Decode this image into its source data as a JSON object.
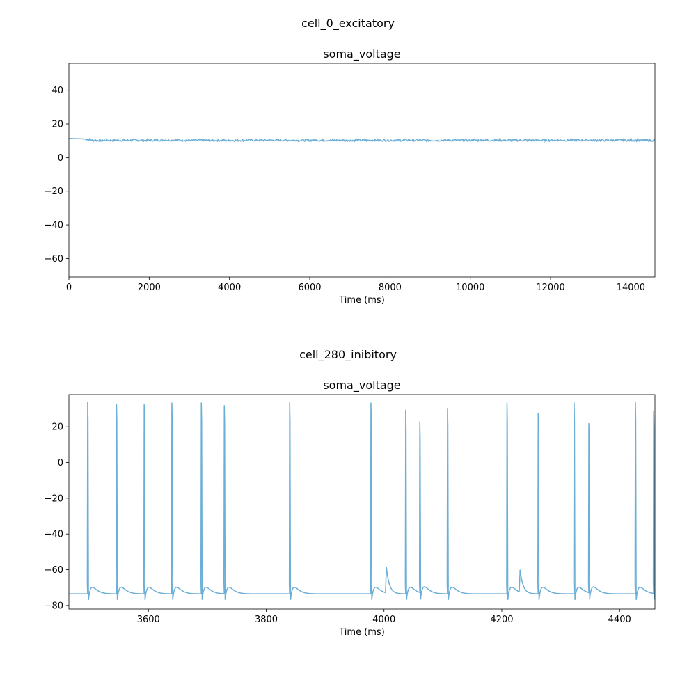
{
  "chart_data": [
    {
      "type": "line",
      "suptitle": "cell_0_excitatory",
      "title": "soma_voltage",
      "xlabel": "Time (ms)",
      "ylabel": "",
      "xlim": [
        0,
        14600
      ],
      "ylim": [
        -71,
        56
      ],
      "xticks": [
        0,
        2000,
        4000,
        6000,
        8000,
        10000,
        12000,
        14000
      ],
      "yticks": [
        -60,
        -40,
        -20,
        0,
        20,
        40
      ],
      "grid": false,
      "color": "#6baed6",
      "series": [
        {
          "x": [
            0,
            300,
            500,
            600,
            800,
            1000,
            1500,
            2000,
            2500,
            3000,
            3500,
            4000,
            4500,
            5000,
            5500,
            6000,
            6500,
            7000,
            7500,
            8000,
            8500,
            9000,
            9500,
            10000,
            10500,
            11000,
            11500,
            12000,
            12500,
            13000,
            13500,
            14000,
            14600
          ],
          "values": [
            11.4,
            11.2,
            10.8,
            10.3,
            10.2,
            10.3,
            10.3,
            10.3,
            10.4,
            10.3,
            10.3,
            10.2,
            10.3,
            10.3,
            10.3,
            10.3,
            10.3,
            10.3,
            10.3,
            10.3,
            10.3,
            10.3,
            10.3,
            10.3,
            10.3,
            10.3,
            10.3,
            10.3,
            10.3,
            10.3,
            10.3,
            10.3,
            10.2
          ],
          "noise_amplitude": 0.6
        }
      ]
    },
    {
      "type": "line",
      "suptitle": "cell_280_inibitory",
      "title": "soma_voltage",
      "xlabel": "Time (ms)",
      "ylabel": "",
      "xlim": [
        3465,
        4460
      ],
      "ylim": [
        -82,
        38
      ],
      "xticks": [
        3600,
        3800,
        4000,
        4200,
        4400
      ],
      "yticks": [
        -80,
        -60,
        -40,
        -20,
        0,
        20
      ],
      "grid": false,
      "color": "#6baed6",
      "rest_potential": -73.5,
      "spikes": [
        {
          "t": 3497,
          "peak": 34
        },
        {
          "t": 3546,
          "peak": 33
        },
        {
          "t": 3593,
          "peak": 32.5
        },
        {
          "t": 3640,
          "peak": 33.5
        },
        {
          "t": 3690,
          "peak": 33.5
        },
        {
          "t": 3729,
          "peak": 32
        },
        {
          "t": 3840,
          "peak": 34
        },
        {
          "t": 3978,
          "peak": 33.5
        },
        {
          "t": 4037,
          "peak": 29.5
        },
        {
          "t": 4061,
          "peak": 23
        },
        {
          "t": 4108,
          "peak": 30.5
        },
        {
          "t": 4209,
          "peak": 33.5
        },
        {
          "t": 4262,
          "peak": 27.5
        },
        {
          "t": 4323,
          "peak": 33.5
        },
        {
          "t": 4348,
          "peak": 22
        },
        {
          "t": 4427,
          "peak": 34
        },
        {
          "t": 4458,
          "peak": 29
        }
      ],
      "subthreshold_bumps": [
        {
          "t": 4004,
          "peak": -59
        },
        {
          "t": 4231,
          "peak": -61
        }
      ]
    }
  ]
}
